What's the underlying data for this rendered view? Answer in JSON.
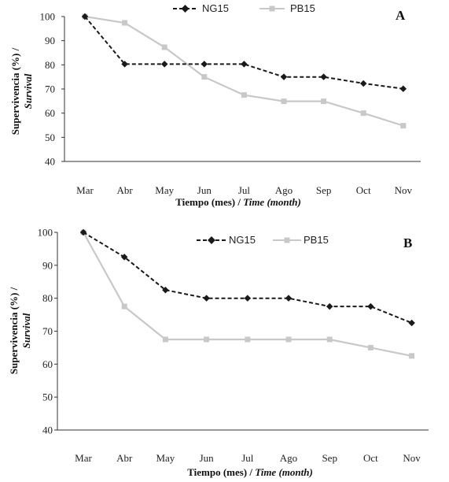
{
  "chart_data": [
    {
      "type": "line",
      "panel": "A",
      "categories": [
        "Mar",
        "Abr",
        "May",
        "Jun",
        "Jul",
        "Ago",
        "Sep",
        "Oct",
        "Nov"
      ],
      "series": [
        {
          "name": "NG15",
          "values": [
            100,
            80.3,
            80.3,
            80.3,
            80.3,
            75,
            75,
            72.3,
            70.1
          ],
          "color": "#1a1a1a",
          "style": "dashed",
          "marker": "diamond"
        },
        {
          "name": "PB15",
          "values": [
            100,
            97.4,
            87.3,
            75,
            67.5,
            64.9,
            64.9,
            60,
            54.8
          ],
          "color": "#c8c8c8",
          "style": "solid",
          "marker": "square"
        }
      ],
      "ylim": [
        40,
        100
      ],
      "yticks": [
        "40",
        "50",
        "60",
        "70",
        "80",
        "90",
        "100"
      ],
      "xlabel": {
        "main": "Tiempo (mes) / ",
        "italic": "Time (month)"
      },
      "ylabel": {
        "main": "Supervivencia (%) /",
        "italic": "Survival"
      },
      "legend_position": "top-center",
      "grid": false
    },
    {
      "type": "line",
      "panel": "B",
      "categories": [
        "Mar",
        "Abr",
        "May",
        "Jun",
        "Jul",
        "Ago",
        "Sep",
        "Oct",
        "Nov"
      ],
      "series": [
        {
          "name": "NG15",
          "values": [
            100,
            92.5,
            82.5,
            80,
            80,
            80,
            77.5,
            77.5,
            72.5
          ],
          "color": "#1a1a1a",
          "style": "dashed",
          "marker": "diamond"
        },
        {
          "name": "PB15",
          "values": [
            100,
            77.5,
            67.5,
            67.5,
            67.5,
            67.5,
            67.5,
            65,
            62.5
          ],
          "color": "#c8c8c8",
          "style": "solid",
          "marker": "square"
        }
      ],
      "ylim": [
        40,
        100
      ],
      "yticks": [
        "40",
        "50",
        "60",
        "70",
        "80",
        "90",
        "100"
      ],
      "xlabel": {
        "main": "Tiempo (mes) / ",
        "italic": "Time (month)"
      },
      "ylabel": {
        "main": "Supervivencia (%) /",
        "italic": "Survival"
      },
      "legend_position": "top-center",
      "grid": false
    }
  ]
}
